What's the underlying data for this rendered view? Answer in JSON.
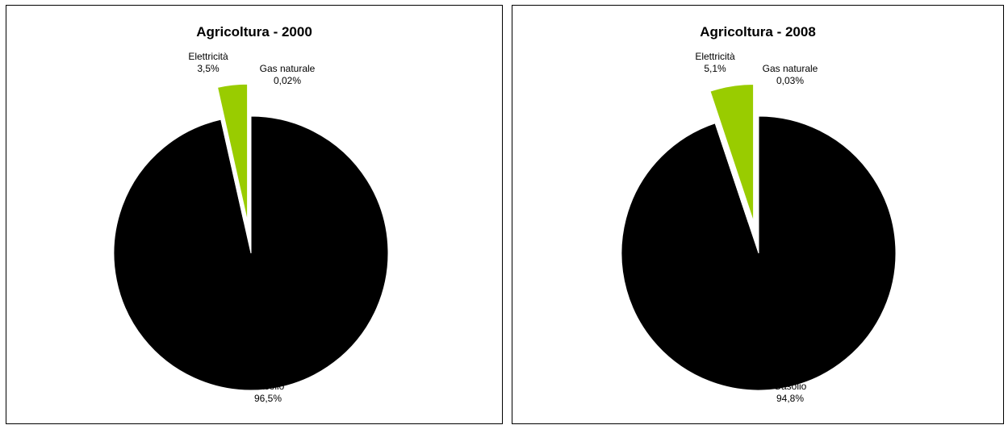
{
  "chart_data": [
    {
      "type": "pie",
      "title": "Agricoltura - 2000",
      "slices": [
        {
          "name": "Gasolio",
          "value": 96.5,
          "label_value": "96,5%",
          "color": "#000000"
        },
        {
          "name": "Gas naturale",
          "value": 0.02,
          "label_value": "0,02%",
          "color": "#99cc00"
        },
        {
          "name": "Elettricità",
          "value": 3.5,
          "label_value": "3,5%",
          "color": "#99cc00"
        }
      ]
    },
    {
      "type": "pie",
      "title": "Agricoltura - 2008",
      "slices": [
        {
          "name": "Gasolio",
          "value": 94.8,
          "label_value": "94,8%",
          "color": "#000000"
        },
        {
          "name": "Gas naturale",
          "value": 0.03,
          "label_value": "0,03%",
          "color": "#99cc00"
        },
        {
          "name": "Elettricità",
          "value": 5.1,
          "label_value": "5,1%",
          "color": "#99cc00"
        }
      ]
    }
  ]
}
